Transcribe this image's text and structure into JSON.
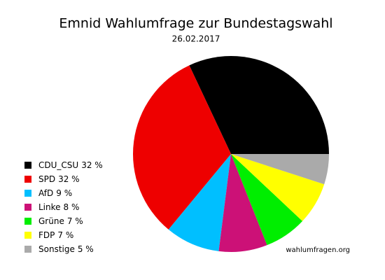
{
  "chart_data": {
    "type": "pie",
    "title": "Emnid Wahlumfrage zur Bundestagswahl",
    "subtitle": "26.02.2017",
    "source": "wahlumfragen.org",
    "categories": [
      "CDU_CSU",
      "SPD",
      "AfD",
      "Linke",
      "Grüne",
      "FDP",
      "Sonstige"
    ],
    "values": [
      32,
      32,
      9,
      8,
      7,
      7,
      5
    ],
    "value_labels": [
      "32 %",
      "32 %",
      "9 %",
      "8 %",
      "7 %",
      "7 %",
      "5 %"
    ],
    "colors": [
      "#000000",
      "#ee0000",
      "#00bfff",
      "#cc1177",
      "#00ee00",
      "#ffff00",
      "#aaaaaa"
    ],
    "legend": "left"
  }
}
